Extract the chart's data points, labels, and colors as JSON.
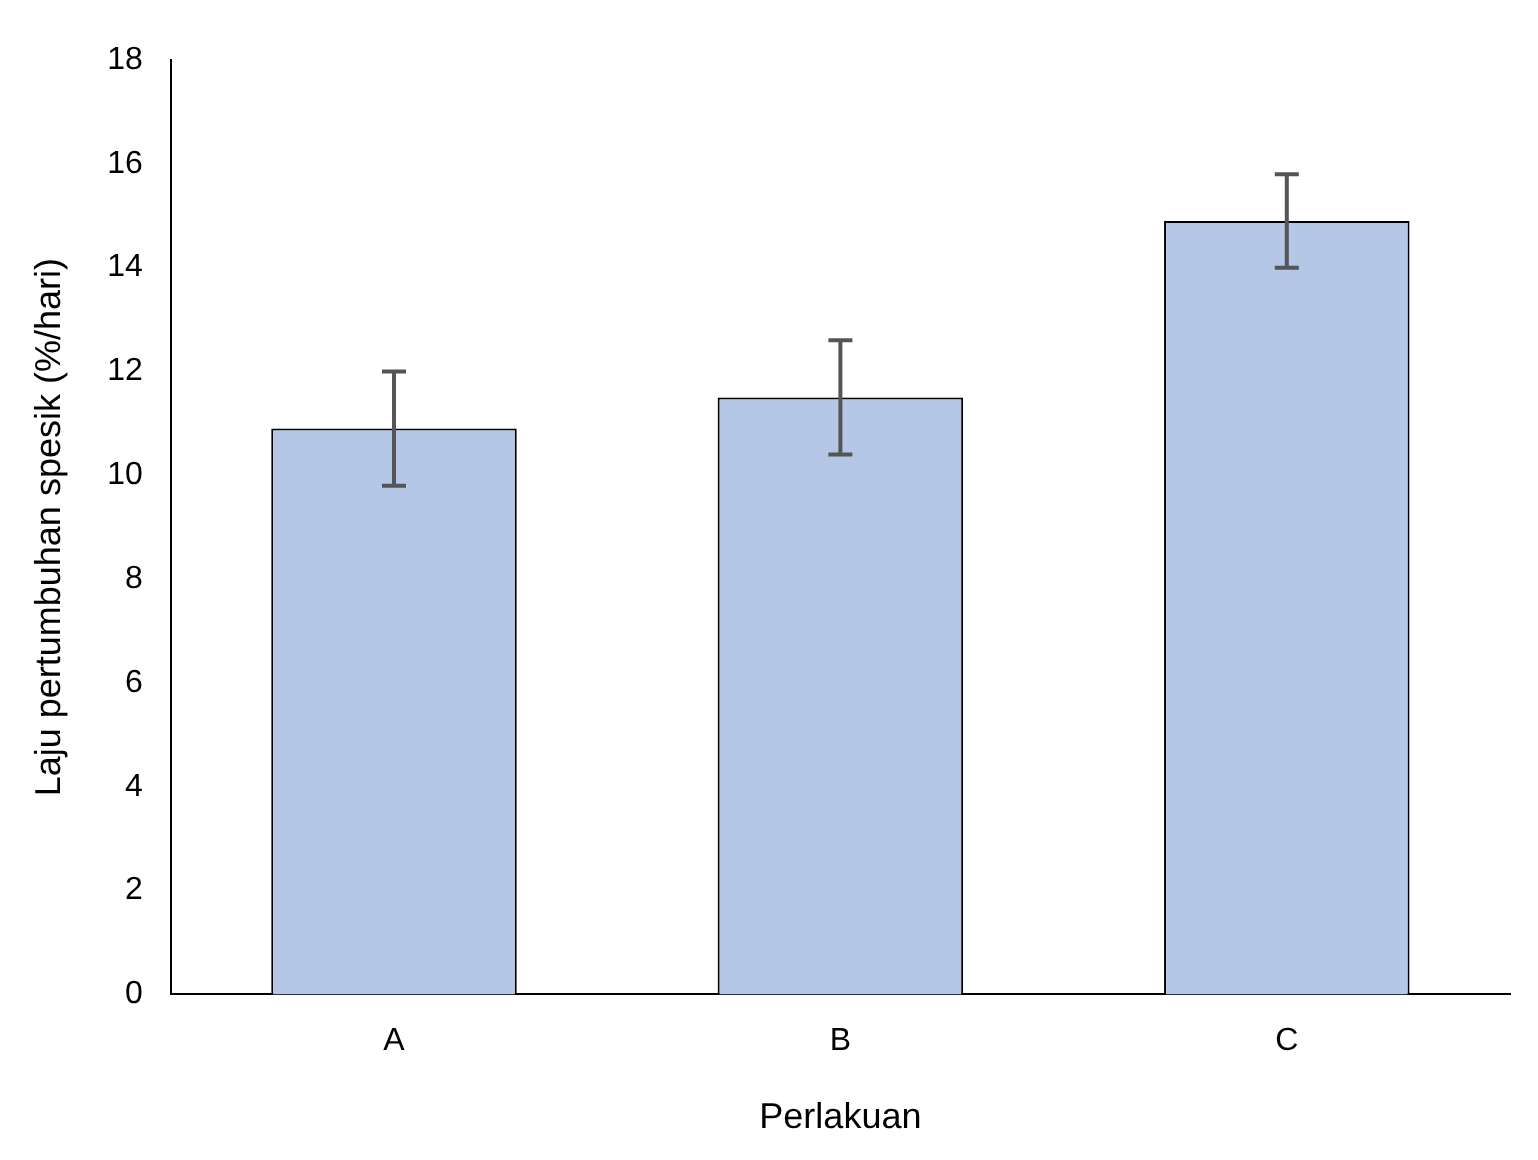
{
  "chart_data": {
    "type": "bar",
    "xlabel": "Perlakuan",
    "ylabel": "Laju pertumbuhan spesik (%/hari)",
    "categories": [
      "A",
      "B",
      "C"
    ],
    "values": [
      10.9,
      11.5,
      14.9
    ],
    "errors": [
      1.1,
      1.1,
      0.9
    ],
    "color": "#b4c7e7",
    "ylim": [
      0,
      18
    ],
    "yticks": [
      0,
      2,
      4,
      6,
      8,
      10,
      12,
      14,
      16,
      18
    ],
    "grid": false,
    "legend": false
  }
}
